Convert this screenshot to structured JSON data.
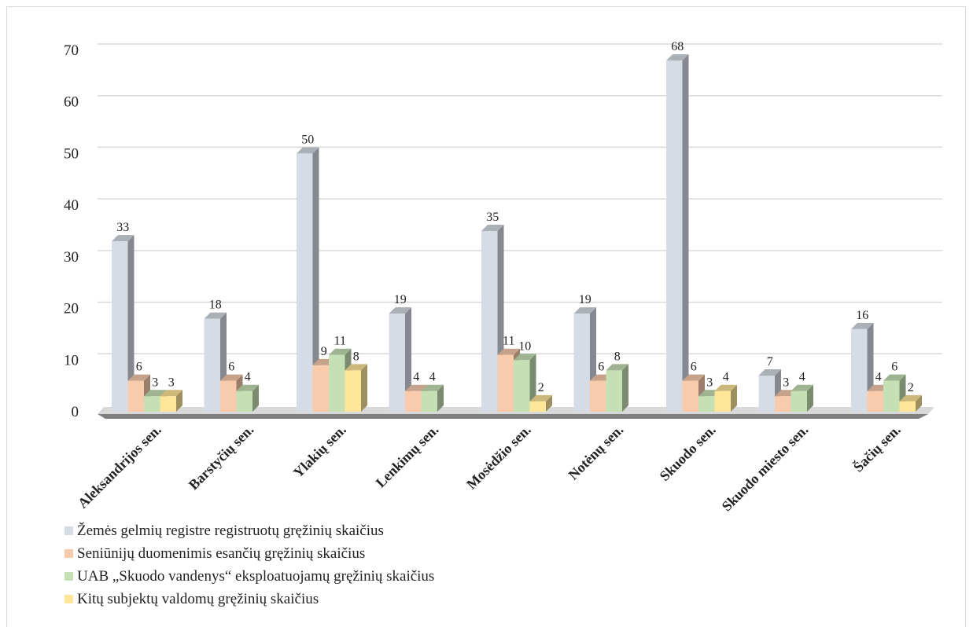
{
  "chart_data": {
    "type": "bar",
    "categories": [
      "Aleksandrijos sen.",
      "Barstyčių sen.",
      "Ylakių sen.",
      "Lenkimų sen.",
      "Mosėdžio sen.",
      "Notėnų sen.",
      "Skuodo sen.",
      "Skuodo miesto sen.",
      "Šačių sen."
    ],
    "series": [
      {
        "name": "Žemės gelmių registre registruotų gręžinių skaičius",
        "color": "#d6dce5",
        "values": [
          33,
          18,
          50,
          19,
          35,
          19,
          68,
          7,
          16
        ]
      },
      {
        "name": "Seniūnijų duomenimis esančių gręžinių skaičius",
        "color": "#f8cbad",
        "values": [
          6,
          6,
          9,
          4,
          11,
          6,
          6,
          3,
          4
        ]
      },
      {
        "name": "UAB „Skuodo vandenys“ eksploatuojamų gręžinių skaičius",
        "color": "#c5e0b4",
        "values": [
          3,
          4,
          11,
          4,
          10,
          8,
          3,
          4,
          6
        ]
      },
      {
        "name": "Kitų subjektų valdomų gręžinių skaičius",
        "color": "#ffe699",
        "values": [
          3,
          null,
          8,
          null,
          2,
          null,
          4,
          null,
          2
        ]
      }
    ],
    "yticks": [
      "0",
      "10",
      "20",
      "30",
      "40",
      "50",
      "60",
      "70"
    ],
    "ylim": [
      0,
      70
    ],
    "grid": true,
    "legend": "bottom-left",
    "style": "3d-clustered-column"
  }
}
